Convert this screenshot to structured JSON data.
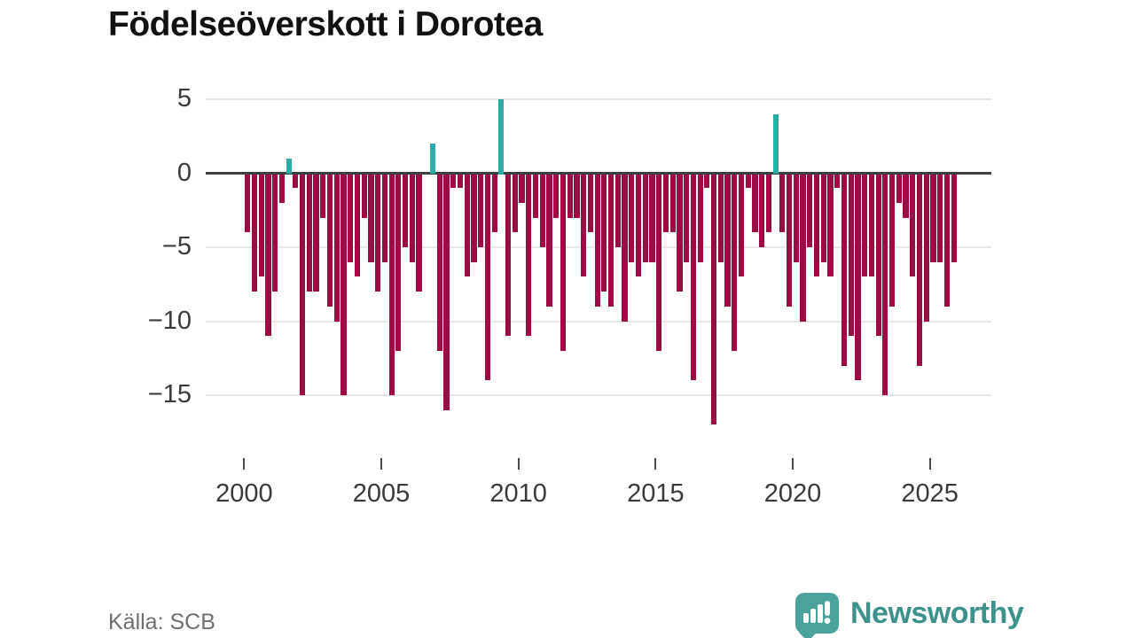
{
  "title": "Födelseöverskott i Dorotea",
  "footer": {
    "source": "Källa: SCB",
    "brand": "Newsworthy"
  },
  "brand_color": "#3c938c",
  "chart_data": {
    "type": "bar",
    "title": "Födelseöverskott i Dorotea",
    "frequency": "quarterly",
    "start": "2000-Q1",
    "end": "2025-Q4",
    "x_tick_labels": [
      "2000",
      "2005",
      "2010",
      "2015",
      "2020",
      "2025"
    ],
    "x_tick_years": [
      2000,
      2005,
      2010,
      2015,
      2020,
      2025
    ],
    "y_tick_labels": [
      "5",
      "0",
      "−5",
      "−10",
      "−15"
    ],
    "y_tick_values": [
      5,
      0,
      -5,
      -10,
      -15
    ],
    "ylim": [
      -18,
      6
    ],
    "grid": true,
    "colors": {
      "positive": "#2aaca7",
      "negative": "#9d0c45",
      "zero_line": "#3f3f3f"
    },
    "series": [
      {
        "name": "Födelseöverskott",
        "values": [
          -4,
          -8,
          -7,
          -11,
          -8,
          -2,
          1,
          -1,
          -15,
          -8,
          -8,
          -3,
          -9,
          -10,
          -15,
          -6,
          -7,
          -3,
          -6,
          -8,
          -6,
          -15,
          -12,
          -5,
          -6,
          -8,
          0,
          2,
          -12,
          -16,
          -1,
          -1,
          -7,
          -6,
          -5,
          -14,
          -4,
          5,
          -11,
          -4,
          -2,
          -11,
          -3,
          -5,
          -9,
          -3,
          -12,
          -3,
          -3,
          -7,
          -4,
          -9,
          -8,
          -9,
          -5,
          -10,
          -6,
          -7,
          -6,
          -6,
          -12,
          -4,
          -4,
          -8,
          -6,
          -14,
          -6,
          -1,
          -17,
          -6,
          -9,
          -12,
          -7,
          -1,
          -4,
          -5,
          -4,
          4,
          -4,
          -9,
          -6,
          -10,
          -5,
          -7,
          -6,
          -7,
          -1,
          -13,
          -11,
          -14,
          -7,
          -7,
          -11,
          -15,
          -9,
          -2,
          -3,
          -7,
          -13,
          -10,
          -6,
          -6,
          -9,
          -6
        ]
      }
    ]
  }
}
